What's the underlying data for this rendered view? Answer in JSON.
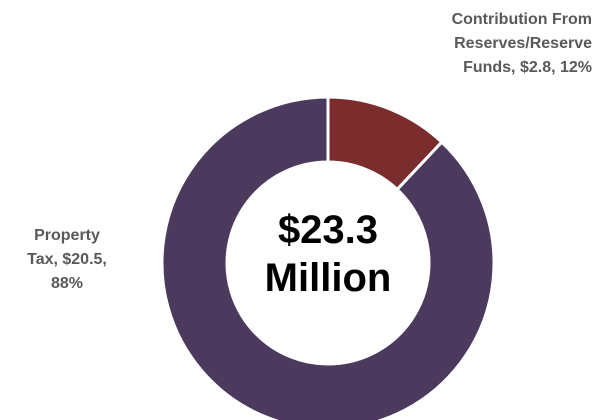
{
  "chart_data": {
    "type": "pie",
    "variant": "donut",
    "title": "",
    "center_label": [
      "$23.3",
      "Million"
    ],
    "slices": [
      {
        "label": "Contribution From Reserves/Reserve Funds, $2.8, 12%",
        "value": 2.8,
        "percent": 12,
        "color": "#7B2C2C"
      },
      {
        "label": "Property Tax, $20.5, 88%",
        "value": 20.5,
        "percent": 88,
        "color": "#4B3A5E"
      }
    ],
    "legend": "none"
  }
}
